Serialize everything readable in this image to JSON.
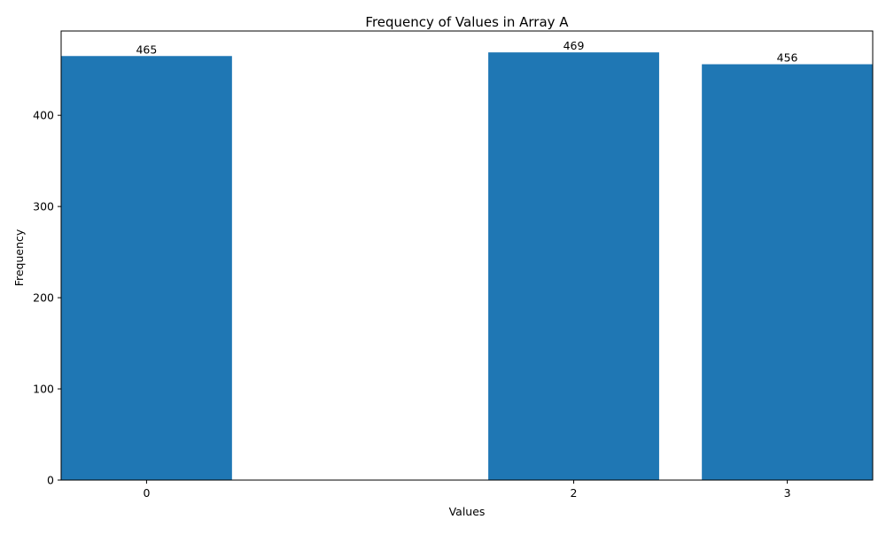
{
  "chart_data": {
    "type": "bar",
    "title": "Frequency of Values in Array A",
    "xlabel": "Values",
    "ylabel": "Frequency",
    "categories": [
      0,
      2,
      3
    ],
    "values": [
      465,
      469,
      456
    ],
    "data_labels": [
      "465",
      "469",
      "456"
    ],
    "xlim": [
      -0.4,
      3.4
    ],
    "ylim": [
      0,
      492.45
    ],
    "yticks": [
      0,
      100,
      200,
      300,
      400
    ],
    "xticks": [
      0,
      2,
      3
    ],
    "bar_width": 0.8,
    "grid": false,
    "bar_color": "#1f77b4"
  }
}
